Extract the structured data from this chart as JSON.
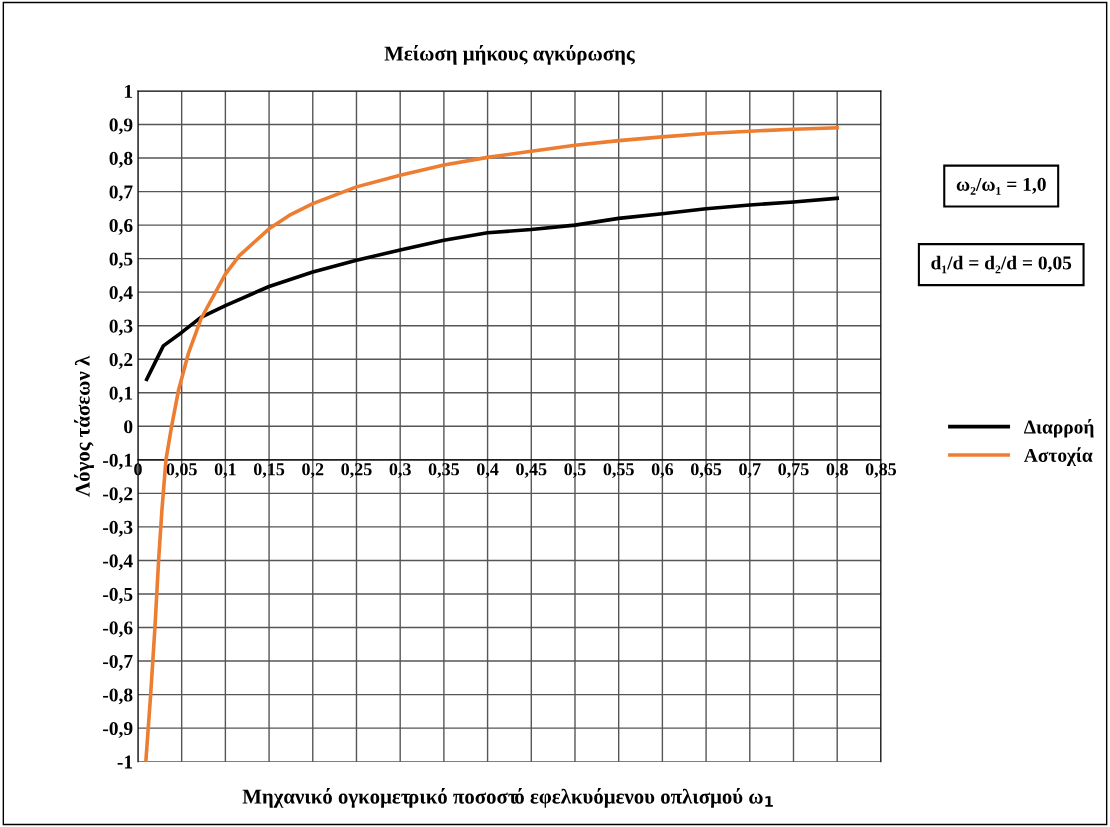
{
  "chart_data": {
    "type": "line",
    "title": "Μείωση μήκους αγκύρωσης",
    "xlabel": "Μηχανικό ογκομετρικό ποσοστό εφελκυόμενου οπλισμού ω$_{1}$",
    "ylabel": "Λόγος τάσεων λ",
    "annotations": [
      "ω₂/ω₁ = 1,0",
      "d₁/d = d₂/d = 0,05"
    ],
    "series": [
      {
        "name": "Διαρροή",
        "color": "#000000",
        "x": [
          0.01,
          0.029,
          0.05,
          0.072,
          0.1,
          0.15,
          0.2,
          0.25,
          0.3,
          0.35,
          0.4,
          0.45,
          0.5,
          0.55,
          0.6,
          0.65,
          0.7,
          0.75,
          0.8
        ],
        "values": [
          0.14,
          0.24,
          0.28,
          0.325,
          0.36,
          0.417,
          0.46,
          0.495,
          0.526,
          0.555,
          0.577,
          0.587,
          0.6,
          0.62,
          0.634,
          0.649,
          0.66,
          0.669,
          0.68
        ]
      },
      {
        "name": "Αστοχία",
        "color": "#ed7d31",
        "x": [
          0.009,
          0.0145,
          0.0194,
          0.0236,
          0.0274,
          0.032,
          0.0385,
          0.0466,
          0.058,
          0.072,
          0.1,
          0.116,
          0.15,
          0.173,
          0.2,
          0.25,
          0.3,
          0.35,
          0.4,
          0.45,
          0.5,
          0.55,
          0.6,
          0.65,
          0.7,
          0.75,
          0.8
        ],
        "values": [
          -1,
          -0.8,
          -0.6,
          -0.4,
          -0.25,
          -0.1,
          0.0,
          0.11,
          0.22,
          0.32,
          0.454,
          0.509,
          0.589,
          0.629,
          0.664,
          0.714,
          0.749,
          0.779,
          0.802,
          0.82,
          0.838,
          0.852,
          0.863,
          0.873,
          0.88,
          0.886,
          0.89
        ]
      }
    ],
    "xlim": [
      0,
      0.85
    ],
    "xticks": [
      0,
      {
        "value": 0.05,
        "label": "0,05"
      },
      {
        "value": 0.1,
        "label": "0,1"
      },
      {
        "value": 0.15,
        "label": "0,15"
      },
      {
        "value": 0.2,
        "label": "0,2"
      },
      {
        "value": 0.25,
        "label": "0,25"
      },
      {
        "value": 0.3,
        "label": "0,3"
      },
      {
        "value": 0.35,
        "label": "0,35"
      },
      {
        "value": 0.4,
        "label": "0,4"
      },
      {
        "value": 0.45,
        "label": "0,45"
      },
      {
        "value": 0.5,
        "label": "0,5"
      },
      {
        "value": 0.55,
        "label": "0,55"
      },
      {
        "value": 0.6,
        "label": "0,6"
      },
      {
        "value": 0.65,
        "label": "0,65"
      },
      {
        "value": 0.7,
        "label": "0,7"
      },
      {
        "value": 0.75,
        "label": "0,75"
      },
      {
        "value": 0.8,
        "label": "0,8"
      },
      {
        "value": 0.85,
        "label": "0,85"
      }
    ],
    "ylim": [
      -1,
      1
    ],
    "yticks": [
      -1,
      {
        "value": -0.9,
        "label": "-0,9"
      },
      {
        "value": -0.8,
        "label": "-0,8"
      },
      {
        "value": -0.7,
        "label": "-0,7"
      },
      {
        "value": -0.6,
        "label": "-0,6"
      },
      {
        "value": -0.5,
        "label": "-0,5"
      },
      {
        "value": -0.4,
        "label": "-0,4"
      },
      {
        "value": -0.3,
        "label": "-0,3"
      },
      {
        "value": -0.2,
        "label": "-0,2"
      },
      {
        "value": -0.1,
        "label": "-0,1"
      },
      0,
      {
        "value": 0.1,
        "label": "0,1"
      },
      {
        "value": 0.2,
        "label": "0,2"
      },
      {
        "value": 0.3,
        "label": "0,3"
      },
      {
        "value": 0.4,
        "label": "0,4"
      },
      {
        "value": 0.5,
        "label": "0,5"
      },
      {
        "value": 0.6,
        "label": "0,6"
      },
      {
        "value": 0.7,
        "label": "0,7"
      },
      {
        "value": 0.8,
        "label": "0,8"
      },
      {
        "value": 0.9,
        "label": "0,9"
      },
      1
    ],
    "grid": true,
    "legend": "right",
    "marker": "none",
    "line_style": "solid"
  }
}
